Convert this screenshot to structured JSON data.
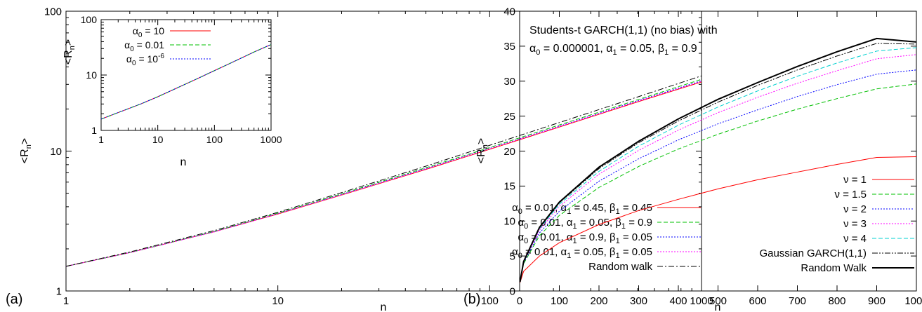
{
  "panels": {
    "a": {
      "panel_label": "(a)",
      "xlabel": "n",
      "ylabel_main": "<R",
      "ylabel_sub": "n",
      "ylabel_end": ">",
      "xticks": [
        "1",
        "10",
        "100",
        "1000"
      ],
      "yticks": [
        "1",
        "10",
        "100"
      ],
      "legend": [
        {
          "main": "α",
          "sub0": "0",
          "rest": " = 0.01, α",
          "sub1": "1",
          "rest2": " = 0.45, β",
          "sub2": "1",
          "rest3": " = 0.45"
        },
        {
          "main": "α",
          "sub0": "0",
          "rest": " = 0.01, α",
          "sub1": "1",
          "rest2": " = 0.05, β",
          "sub2": "1",
          "rest3": " = 0.9"
        },
        {
          "main": "α",
          "sub0": "0",
          "rest": " = 0.01, α",
          "sub1": "1",
          "rest2": " = 0.9, β",
          "sub2": "1",
          "rest3": " = 0.05"
        },
        {
          "main": "α",
          "sub0": "0",
          "rest": " = 0.01, α",
          "sub1": "1",
          "rest2": " = 0.05, β",
          "sub2": "1",
          "rest3": " = 0.05"
        },
        {
          "plain": "Random walk"
        }
      ],
      "inset": {
        "xlabel": "n",
        "ylabel_main": "<R",
        "ylabel_sub": "n",
        "ylabel_end": ">",
        "xticks": [
          "1",
          "10",
          "100",
          "1000"
        ],
        "yticks": [
          "1",
          "10",
          "100"
        ],
        "legend": [
          {
            "main": "α",
            "sub0": "0",
            "rest": " = 10"
          },
          {
            "main": "α",
            "sub0": "0",
            "rest": " = 0.01"
          },
          {
            "main": "α",
            "sub0": "0",
            "rest": " = 10",
            "sup": "-6"
          }
        ]
      }
    },
    "b": {
      "panel_label": "(b)",
      "xlabel": "n",
      "ylabel_main": "<R",
      "ylabel_sub": "n",
      "ylabel_end": ">",
      "xticks": [
        "0",
        "100",
        "200",
        "300",
        "400",
        "500",
        "600",
        "700",
        "800",
        "900",
        "1000"
      ],
      "yticks": [
        "0",
        "5",
        "10",
        "15",
        "20",
        "25",
        "30",
        "35",
        "40"
      ],
      "annotation_line1": "Students-t GARCH(1,1) (no bias) with",
      "annotation_line2": {
        "a0": "α",
        "s0": "0",
        "t0": " = 0.000001, α",
        "s1": "1",
        "t1": " = 0.05, β",
        "s2": "1",
        "t2": " = 0.9"
      },
      "legend": [
        "ν = 1",
        "ν = 1.5",
        "ν = 2",
        "ν = 3",
        "ν = 4",
        "Gaussian GARCH(1,1)",
        "Random Walk"
      ]
    }
  },
  "chart_data": [
    {
      "type": "line",
      "panel": "(a)",
      "xlabel": "n",
      "ylabel": "<Rn>",
      "xscale": "log",
      "yscale": "log",
      "xlim": [
        1,
        1000
      ],
      "ylim": [
        1,
        100
      ],
      "grid": false,
      "legend_position": "bottom-right",
      "x": [
        1,
        2,
        5,
        10,
        20,
        50,
        100,
        200,
        500,
        1000
      ],
      "series": [
        {
          "name": "α0 = 0.01, α1 = 0.45, β1 = 0.45",
          "color": "#ff0000",
          "dash": "solid",
          "values": [
            1.5,
            1.88,
            2.65,
            3.55,
            4.85,
            7.4,
            10.3,
            14.4,
            22.5,
            31.2
          ]
        },
        {
          "name": "α0 = 0.01, α1 = 0.05, β1 = 0.9",
          "color": "#00c000",
          "dash": "dashed",
          "values": [
            1.5,
            1.88,
            2.66,
            3.6,
            4.95,
            7.6,
            10.6,
            14.9,
            23.3,
            32.6
          ]
        },
        {
          "name": "α0 = 0.01, α1 = 0.9, β1 = 0.05",
          "color": "#0000ff",
          "dash": "dotted",
          "values": [
            1.5,
            1.88,
            2.65,
            3.57,
            4.9,
            7.5,
            10.45,
            14.6,
            22.9,
            31.8
          ]
        },
        {
          "name": "α0 = 0.01, α1 = 0.05, β1 = 0.05",
          "color": "#ff00ff",
          "dash": "dotted",
          "values": [
            1.5,
            1.88,
            2.64,
            3.56,
            4.87,
            7.45,
            10.4,
            14.5,
            22.7,
            31.5
          ]
        },
        {
          "name": "Random walk",
          "color": "#000000",
          "dash": "dashdot",
          "values": [
            1.5,
            1.9,
            2.7,
            3.65,
            5.05,
            7.8,
            11.0,
            15.5,
            24.4,
            34.5
          ]
        }
      ]
    },
    {
      "type": "line",
      "panel": "(a) inset",
      "xlabel": "n",
      "ylabel": "<Rn>",
      "xscale": "log",
      "yscale": "log",
      "xlim": [
        1,
        1000
      ],
      "ylim": [
        1,
        100
      ],
      "legend_position": "top-left",
      "x": [
        1,
        2,
        5,
        10,
        20,
        50,
        100,
        200,
        500,
        1000
      ],
      "series": [
        {
          "name": "α0 = 10",
          "color": "#ff0000",
          "dash": "solid",
          "values": [
            1.6,
            2.1,
            3.0,
            4.05,
            5.6,
            8.6,
            12.0,
            16.7,
            26.0,
            35.5
          ]
        },
        {
          "name": "α0 = 0.01",
          "color": "#00c000",
          "dash": "dashed",
          "values": [
            1.6,
            2.1,
            3.0,
            4.05,
            5.6,
            8.6,
            12.0,
            16.7,
            26.0,
            35.5
          ]
        },
        {
          "name": "α0 = 10^-6",
          "color": "#0000ff",
          "dash": "dotted",
          "values": [
            1.6,
            2.1,
            3.0,
            4.05,
            5.6,
            8.6,
            12.0,
            16.7,
            26.0,
            35.5
          ]
        }
      ]
    },
    {
      "type": "line",
      "panel": "(b)",
      "title": "Students-t GARCH(1,1) (no bias) with α0 = 0.000001, α1 = 0.05, β1 = 0.9",
      "xlabel": "n",
      "ylabel": "<Rn>",
      "xscale": "linear",
      "yscale": "linear",
      "xlim": [
        0,
        1000
      ],
      "ylim": [
        0,
        40
      ],
      "grid": false,
      "legend_position": "bottom-right",
      "x": [
        1,
        10,
        50,
        100,
        200,
        300,
        400,
        500,
        600,
        700,
        800,
        900,
        1000
      ],
      "series": [
        {
          "name": "ν = 1",
          "color": "#ff0000",
          "dash": "solid",
          "values": [
            1.2,
            2.8,
            5.0,
            6.9,
            9.5,
            11.5,
            13.1,
            14.6,
            15.9,
            17.0,
            18.1,
            19.1,
            19.2
          ]
        },
        {
          "name": "ν = 1.5",
          "color": "#00c000",
          "dash": "dashed",
          "values": [
            1.3,
            3.9,
            7.9,
            10.8,
            14.8,
            17.8,
            20.3,
            22.4,
            24.3,
            26.0,
            27.5,
            28.9,
            29.6
          ]
        },
        {
          "name": "ν = 2",
          "color": "#0000ff",
          "dash": "dotted",
          "values": [
            1.3,
            4.0,
            8.3,
            11.4,
            15.7,
            18.9,
            21.6,
            23.9,
            25.9,
            27.8,
            29.5,
            31.0,
            31.6
          ]
        },
        {
          "name": "ν = 3",
          "color": "#ff00ff",
          "dash": "dotted",
          "values": [
            1.3,
            4.1,
            8.7,
            12.1,
            16.7,
            20.1,
            23.0,
            25.5,
            27.7,
            29.7,
            31.5,
            33.2,
            33.8
          ]
        },
        {
          "name": "ν = 4",
          "color": "#00d0d0",
          "dash": "dashed",
          "values": [
            1.3,
            4.2,
            8.9,
            12.4,
            17.1,
            20.7,
            23.7,
            26.3,
            28.6,
            30.7,
            32.6,
            34.3,
            34.8
          ]
        },
        {
          "name": "Gaussian GARCH(1,1)",
          "color": "#000000",
          "dash": "dashdotdot",
          "values": [
            1.3,
            4.2,
            9.0,
            12.6,
            17.5,
            21.2,
            24.3,
            27.0,
            29.4,
            31.6,
            33.6,
            35.4,
            35.3
          ]
        },
        {
          "name": "Random Walk",
          "color": "#000000",
          "dash": "solid",
          "values": [
            1.3,
            4.2,
            9.1,
            12.7,
            17.7,
            21.4,
            24.6,
            27.4,
            29.8,
            32.1,
            34.2,
            36.1,
            35.6
          ]
        }
      ]
    }
  ]
}
